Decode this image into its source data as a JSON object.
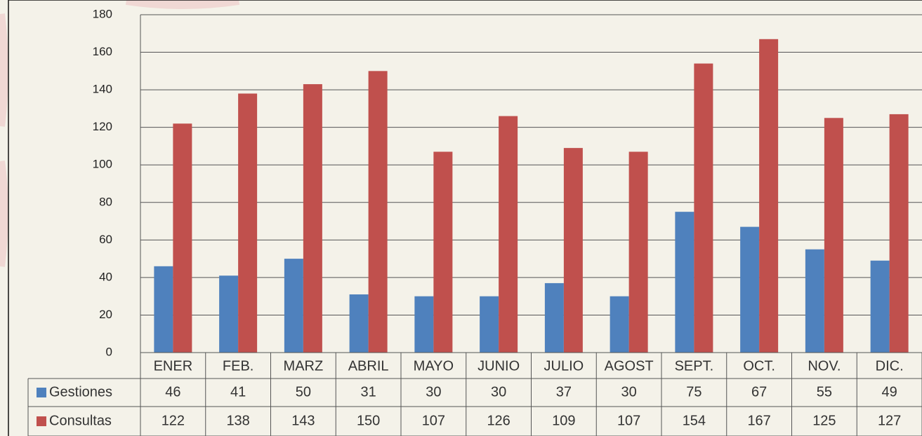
{
  "chart_data": {
    "type": "bar",
    "categories": [
      "ENER",
      "FEB.",
      "MARZ",
      "ABRIL",
      "MAYO",
      "JUNIO",
      "JULIO",
      "AGOST",
      "SEPT.",
      "OCT.",
      "NOV.",
      "DIC."
    ],
    "series": [
      {
        "name": "Gestiones",
        "color": "#4f81bd",
        "values": [
          46,
          41,
          50,
          31,
          30,
          30,
          37,
          30,
          75,
          67,
          55,
          49
        ]
      },
      {
        "name": "Consultas",
        "color": "#c0504d",
        "values": [
          122,
          138,
          143,
          150,
          107,
          126,
          109,
          107,
          154,
          167,
          125,
          127
        ]
      }
    ],
    "ylim": [
      0,
      180
    ],
    "yticks": [
      0,
      20,
      40,
      60,
      80,
      100,
      120,
      140,
      160,
      180
    ],
    "grid": true
  }
}
